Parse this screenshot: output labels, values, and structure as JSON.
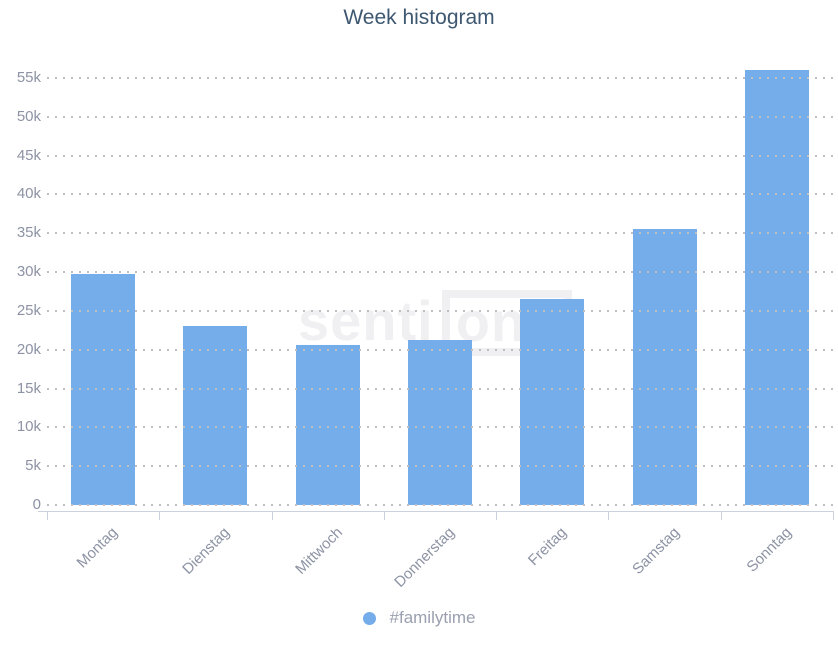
{
  "title": "Week histogram",
  "watermark": {
    "part1": "senti",
    "part2": "one"
  },
  "legend": {
    "label": "#familytime"
  },
  "colors": {
    "bar": "#74ade9",
    "title": "#3e5871",
    "axis_labels": "#8d93a4",
    "grid_dots": "#bfbfc3",
    "axis_line": "#ccd1dd",
    "legend_text": "#9aa0af",
    "watermark": "#f0f0f2"
  },
  "chart_data": {
    "type": "bar",
    "title": "Week histogram",
    "categories": [
      "Montag",
      "Dienstag",
      "Mittwoch",
      "Donnerstag",
      "Freitag",
      "Samstag",
      "Sonntag"
    ],
    "series": [
      {
        "name": "#familytime",
        "values": [
          29800,
          23000,
          20600,
          21300,
          26500,
          35500,
          56000
        ]
      }
    ],
    "xlabel": "",
    "ylabel": "",
    "ylim": [
      0,
      55000
    ],
    "ytick_step": 5000,
    "ytick_labels": [
      "0",
      "5k",
      "10k",
      "15k",
      "20k",
      "25k",
      "30k",
      "35k",
      "40k",
      "45k",
      "50k",
      "55k"
    ],
    "grid": "horizontal-dotted",
    "legend_position": "bottom-center",
    "x_label_rotation": -45
  }
}
